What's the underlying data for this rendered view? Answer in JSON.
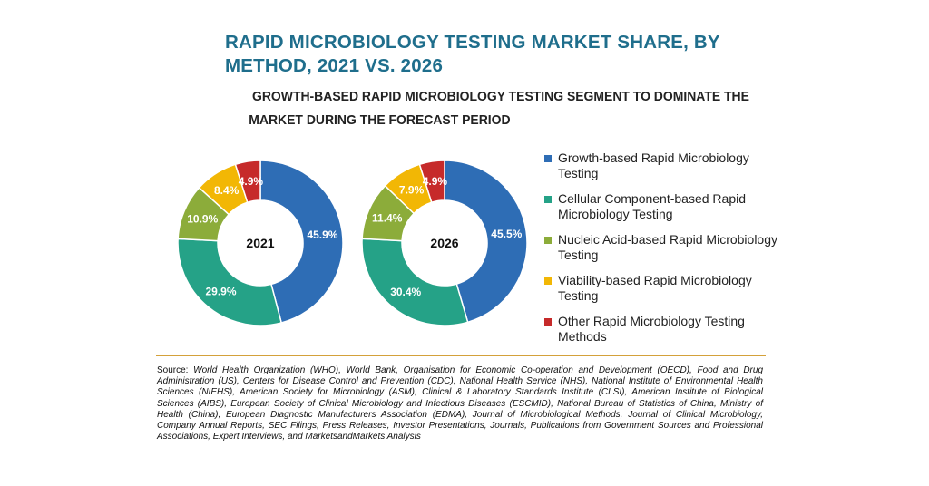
{
  "title": "RAPID MICROBIOLOGY TESTING MARKET SHARE, BY METHOD, 2021 VS. 2026",
  "subtitle_line1": "GROWTH-BASED RAPID MICROBIOLOGY TESTING SEGMENT TO DOMINATE THE",
  "subtitle_line2": "MARKET DURING THE FORECAST PERIOD",
  "source_label": "Source:",
  "source_text": "World Health Organization (WHO), World Bank, Organisation for Economic Co-operation and Development (OECD), Food and Drug Administration (US), Centers for Disease Control and Prevention (CDC), National Health Service (NHS), National Institute of Environmental Health Sciences (NIEHS), American Society for Microbiology (ASM), Clinical & Laboratory Standards Institute (CLSI), American Institute of Biological Sciences (AIBS), European Society of Clinical Microbiology and Infectious Diseases (ESCMID), National Bureau of Statistics of China, Ministry of Health (China), European Diagnostic Manufacturers Association (EDMA), Journal of Microbiological Methods, Journal of Clinical Microbiology, Company Annual Reports, SEC Filings, Press Releases, Investor Presentations, Journals, Publications from Government Sources and Professional Associations, Expert Interviews, and MarketsandMarkets Analysis",
  "colors": {
    "title": "#1f6e8c",
    "divider": "#d4a13a"
  },
  "chart_data": [
    {
      "type": "pie",
      "donut": true,
      "center_label": "2021",
      "categories": [
        "Growth-based Rapid Microbiology Testing",
        "Cellular Component-based Rapid Microbiology Testing",
        "Nucleic Acid-based Rapid Microbiology Testing",
        "Viability-based Rapid Microbiology Testing",
        "Other Rapid Microbiology Testing Methods"
      ],
      "values": [
        45.9,
        29.9,
        10.9,
        8.4,
        4.9
      ],
      "labels": [
        "45.9%",
        "29.9%",
        "10.9%",
        "8.4%",
        "4.9%"
      ],
      "colors": [
        "#2e6db5",
        "#25a287",
        "#8cac3a",
        "#f2b705",
        "#c62a2a"
      ]
    },
    {
      "type": "pie",
      "donut": true,
      "center_label": "2026",
      "categories": [
        "Growth-based Rapid Microbiology Testing",
        "Cellular Component-based Rapid Microbiology Testing",
        "Nucleic Acid-based Rapid Microbiology Testing",
        "Viability-based Rapid Microbiology Testing",
        "Other Rapid Microbiology Testing Methods"
      ],
      "values": [
        45.5,
        30.4,
        11.4,
        7.9,
        4.9
      ],
      "labels": [
        "45.5%",
        "30.4%",
        "11.4%",
        "7.9%",
        "4.9%"
      ],
      "colors": [
        "#2e6db5",
        "#25a287",
        "#8cac3a",
        "#f2b705",
        "#c62a2a"
      ]
    }
  ],
  "legend": [
    {
      "label": "Growth-based Rapid Microbiology Testing",
      "color": "#2e6db5"
    },
    {
      "label": "Cellular Component-based Rapid Microbiology Testing",
      "color": "#25a287"
    },
    {
      "label": "Nucleic Acid-based Rapid Microbiology Testing",
      "color": "#8cac3a"
    },
    {
      "label": "Viability-based Rapid Microbiology Testing",
      "color": "#f2b705"
    },
    {
      "label": "Other Rapid Microbiology Testing Methods",
      "color": "#c62a2a"
    }
  ]
}
